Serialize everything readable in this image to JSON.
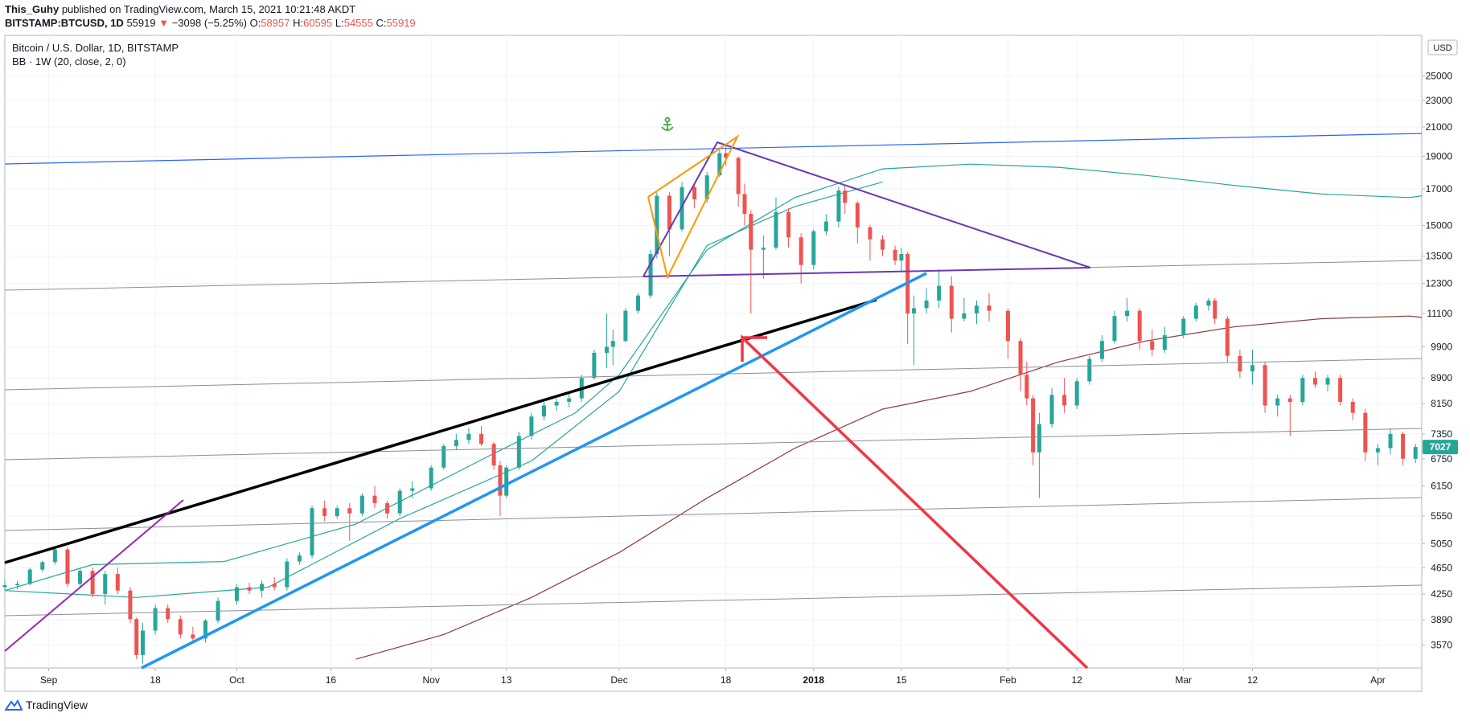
{
  "header": {
    "author": "This_Guhy",
    "published_text": "published on TradingView.com, March 15, 2021 10:21:48 AKDT"
  },
  "quote": {
    "symbol": "BITSTAMP:BTCUSD, 1D",
    "last": "55919",
    "change": "−3098 (−5.25%)",
    "open_label": "O:",
    "open": "58957",
    "high_label": "H:",
    "high": "60595",
    "low_label": "L:",
    "low": "54555",
    "close_label": "C:",
    "close": "55919"
  },
  "legend": {
    "title": "Bitcoin / U.S. Dollar, 1D, BITSTAMP",
    "indicator": "BB · 1W (20, close, 2, 0)"
  },
  "price_scale": {
    "currency": "USD",
    "last_price_tag": "7027",
    "last_price_color": "#26a69a"
  },
  "footer": {
    "brand": "TradingView"
  },
  "colors": {
    "up": "#26a69a",
    "down": "#ef5350",
    "bb_upper": "#26a69a",
    "bb_basis": "#26a69a",
    "bb_lower": "#8d3b38"
  },
  "chart_data": {
    "type": "candlestick",
    "y_scale": "log",
    "ylim": [
      3300,
      27500
    ],
    "y_ticks": [
      25000,
      23000,
      21000,
      19000,
      17000,
      15000,
      13500,
      12300,
      11100,
      9900,
      8900,
      8150,
      7350,
      6750,
      6150,
      5550,
      5050,
      4650,
      4250,
      3890,
      3570
    ],
    "x_ticks": [
      {
        "label": "Sep",
        "date": "2017-09-01"
      },
      {
        "label": "18",
        "date": "2017-09-18"
      },
      {
        "label": "Oct",
        "date": "2017-10-01"
      },
      {
        "label": "16",
        "date": "2017-10-16"
      },
      {
        "label": "Nov",
        "date": "2017-11-01"
      },
      {
        "label": "13",
        "date": "2017-11-13"
      },
      {
        "label": "Dec",
        "date": "2017-12-01"
      },
      {
        "label": "18",
        "date": "2017-12-18"
      },
      {
        "label": "2018",
        "date": "2018-01-01"
      },
      {
        "label": "15",
        "date": "2018-01-15"
      },
      {
        "label": "Feb",
        "date": "2018-02-01"
      },
      {
        "label": "12",
        "date": "2018-02-12"
      },
      {
        "label": "Mar",
        "date": "2018-03-01"
      },
      {
        "label": "12",
        "date": "2018-03-12"
      },
      {
        "label": "Apr",
        "date": "2018-04-01"
      }
    ],
    "x_range": [
      "2017-08-25",
      "2018-04-08"
    ],
    "candles": [
      [
        "2017-08-25",
        4350,
        4450,
        4300,
        4380
      ],
      [
        "2017-08-27",
        4380,
        4450,
        4320,
        4400
      ],
      [
        "2017-08-29",
        4400,
        4650,
        4380,
        4620
      ],
      [
        "2017-08-31",
        4620,
        4760,
        4580,
        4740
      ],
      [
        "2017-09-02",
        4740,
        4980,
        4700,
        4950
      ],
      [
        "2017-09-04",
        4950,
        4990,
        4350,
        4400
      ],
      [
        "2017-09-06",
        4400,
        4650,
        4350,
        4600
      ],
      [
        "2017-09-08",
        4600,
        4650,
        4200,
        4250
      ],
      [
        "2017-09-10",
        4250,
        4600,
        4100,
        4550
      ],
      [
        "2017-09-12",
        4550,
        4650,
        4250,
        4300
      ],
      [
        "2017-09-14",
        4300,
        4350,
        3850,
        3900
      ],
      [
        "2017-09-15",
        3900,
        3920,
        3400,
        3450
      ],
      [
        "2017-09-16",
        3450,
        3850,
        3350,
        3750
      ],
      [
        "2017-09-18",
        3750,
        4100,
        3700,
        4050
      ],
      [
        "2017-09-20",
        4050,
        4100,
        3850,
        3900
      ],
      [
        "2017-09-22",
        3900,
        3950,
        3650,
        3700
      ],
      [
        "2017-09-24",
        3700,
        3800,
        3600,
        3650
      ],
      [
        "2017-09-26",
        3650,
        3900,
        3600,
        3880
      ],
      [
        "2017-09-28",
        3880,
        4200,
        3850,
        4150
      ],
      [
        "2017-10-01",
        4150,
        4400,
        4100,
        4350
      ],
      [
        "2017-10-03",
        4350,
        4420,
        4250,
        4300
      ],
      [
        "2017-10-05",
        4300,
        4450,
        4200,
        4400
      ],
      [
        "2017-10-07",
        4400,
        4500,
        4300,
        4350
      ],
      [
        "2017-10-09",
        4350,
        4800,
        4300,
        4750
      ],
      [
        "2017-10-11",
        4750,
        4900,
        4700,
        4850
      ],
      [
        "2017-10-13",
        4850,
        5750,
        4800,
        5700
      ],
      [
        "2017-10-15",
        5700,
        5850,
        5450,
        5550
      ],
      [
        "2017-10-17",
        5550,
        5750,
        5500,
        5700
      ],
      [
        "2017-10-19",
        5700,
        5800,
        5100,
        5600
      ],
      [
        "2017-10-21",
        5600,
        6000,
        5550,
        5950
      ],
      [
        "2017-10-23",
        5950,
        6150,
        5700,
        5800
      ],
      [
        "2017-10-25",
        5800,
        5850,
        5500,
        5600
      ],
      [
        "2017-10-27",
        5600,
        6100,
        5550,
        6050
      ],
      [
        "2017-10-29",
        6050,
        6250,
        5900,
        6100
      ],
      [
        "2017-11-01",
        6100,
        6600,
        6050,
        6550
      ],
      [
        "2017-11-03",
        6550,
        7100,
        6500,
        7050
      ],
      [
        "2017-11-05",
        7050,
        7350,
        6950,
        7200
      ],
      [
        "2017-11-07",
        7200,
        7500,
        7100,
        7350
      ],
      [
        "2017-11-09",
        7350,
        7550,
        7050,
        7100
      ],
      [
        "2017-11-11",
        7100,
        7150,
        6500,
        6600
      ],
      [
        "2017-11-12",
        6600,
        6700,
        5550,
        5950
      ],
      [
        "2017-11-13",
        5950,
        6600,
        5900,
        6550
      ],
      [
        "2017-11-15",
        6550,
        7400,
        6500,
        7300
      ],
      [
        "2017-11-17",
        7300,
        7900,
        7200,
        7800
      ],
      [
        "2017-11-19",
        7800,
        8200,
        7700,
        8100
      ],
      [
        "2017-11-21",
        8100,
        8300,
        7950,
        8200
      ],
      [
        "2017-11-23",
        8200,
        8500,
        8050,
        8300
      ],
      [
        "2017-11-25",
        8300,
        9000,
        8200,
        8900
      ],
      [
        "2017-11-27",
        8900,
        9800,
        8850,
        9700
      ],
      [
        "2017-11-29",
        9700,
        11100,
        9200,
        9900
      ],
      [
        "2017-11-30",
        9900,
        10500,
        9300,
        10100
      ],
      [
        "2017-12-02",
        10100,
        11300,
        10050,
        11200
      ],
      [
        "2017-12-04",
        11200,
        11900,
        11100,
        11800
      ],
      [
        "2017-12-06",
        11800,
        13800,
        11700,
        13600
      ],
      [
        "2017-12-07",
        13600,
        16800,
        13400,
        16600
      ],
      [
        "2017-12-09",
        16600,
        16800,
        13500,
        14800
      ],
      [
        "2017-12-11",
        14800,
        17400,
        14700,
        17100
      ],
      [
        "2017-12-13",
        17100,
        17300,
        15900,
        16400
      ],
      [
        "2017-12-15",
        16400,
        18000,
        16200,
        17800
      ],
      [
        "2017-12-17",
        17800,
        19600,
        17700,
        19200
      ],
      [
        "2017-12-18",
        19200,
        19700,
        18400,
        18900
      ],
      [
        "2017-12-20",
        18900,
        19000,
        16000,
        16700
      ],
      [
        "2017-12-21",
        16700,
        17300,
        15000,
        15600
      ],
      [
        "2017-12-22",
        15600,
        15800,
        11100,
        13800
      ],
      [
        "2017-12-24",
        13800,
        14500,
        12500,
        13900
      ],
      [
        "2017-12-26",
        13900,
        16500,
        13800,
        15700
      ],
      [
        "2017-12-28",
        15700,
        15900,
        13900,
        14400
      ],
      [
        "2017-12-30",
        14400,
        14600,
        12300,
        13100
      ],
      [
        "2018-01-01",
        13100,
        14800,
        12900,
        14700
      ],
      [
        "2018-01-03",
        14700,
        15600,
        14500,
        15200
      ],
      [
        "2018-01-05",
        15200,
        17100,
        14900,
        16900
      ],
      [
        "2018-01-06",
        16900,
        17200,
        15600,
        16200
      ],
      [
        "2018-01-08",
        16200,
        16300,
        14100,
        14900
      ],
      [
        "2018-01-10",
        14900,
        15000,
        13300,
        14300
      ],
      [
        "2018-01-12",
        14300,
        14500,
        13500,
        13800
      ],
      [
        "2018-01-14",
        13800,
        14000,
        13100,
        13300
      ],
      [
        "2018-01-15",
        13300,
        13900,
        12800,
        13600
      ],
      [
        "2018-01-16",
        13600,
        13700,
        10000,
        11100
      ],
      [
        "2018-01-17",
        11100,
        11800,
        9300,
        11300
      ],
      [
        "2018-01-19",
        11300,
        12100,
        11100,
        11600
      ],
      [
        "2018-01-21",
        11600,
        12900,
        11300,
        12200
      ],
      [
        "2018-01-23",
        12200,
        12600,
        10400,
        10900
      ],
      [
        "2018-01-25",
        10900,
        11700,
        10800,
        11100
      ],
      [
        "2018-01-27",
        11100,
        11600,
        10700,
        11400
      ],
      [
        "2018-01-29",
        11400,
        11900,
        10800,
        11200
      ],
      [
        "2018-02-01",
        11200,
        11300,
        9500,
        10100
      ],
      [
        "2018-02-03",
        10100,
        10200,
        8500,
        9000
      ],
      [
        "2018-02-04",
        9000,
        9400,
        8100,
        8300
      ],
      [
        "2018-02-05",
        8300,
        8400,
        6600,
        6900
      ],
      [
        "2018-02-06",
        6900,
        7900,
        5900,
        7600
      ],
      [
        "2018-02-08",
        7600,
        8600,
        7500,
        8400
      ],
      [
        "2018-02-10",
        8400,
        8900,
        7900,
        8100
      ],
      [
        "2018-02-12",
        8100,
        8900,
        8000,
        8800
      ],
      [
        "2018-02-14",
        8800,
        9600,
        8700,
        9500
      ],
      [
        "2018-02-16",
        9500,
        10300,
        9400,
        10100
      ],
      [
        "2018-02-18",
        10100,
        11200,
        10000,
        11000
      ],
      [
        "2018-02-20",
        11000,
        11700,
        10800,
        11200
      ],
      [
        "2018-02-22",
        11200,
        11300,
        9800,
        10100
      ],
      [
        "2018-02-24",
        10100,
        10500,
        9600,
        9800
      ],
      [
        "2018-02-26",
        9800,
        10600,
        9700,
        10300
      ],
      [
        "2018-03-01",
        10300,
        11000,
        10200,
        10900
      ],
      [
        "2018-03-03",
        10900,
        11500,
        10800,
        11400
      ],
      [
        "2018-03-05",
        11400,
        11700,
        11200,
        11600
      ],
      [
        "2018-03-06",
        11600,
        11700,
        10700,
        10900
      ],
      [
        "2018-03-08",
        10900,
        11000,
        9400,
        9600
      ],
      [
        "2018-03-10",
        9600,
        9800,
        8900,
        9100
      ],
      [
        "2018-03-12",
        9100,
        9800,
        8700,
        9300
      ],
      [
        "2018-03-14",
        9300,
        9400,
        7900,
        8100
      ],
      [
        "2018-03-16",
        8100,
        8400,
        7800,
        8300
      ],
      [
        "2018-03-18",
        8300,
        8400,
        7300,
        8200
      ],
      [
        "2018-03-20",
        8200,
        9000,
        8100,
        8900
      ],
      [
        "2018-03-22",
        8900,
        9100,
        8600,
        8700
      ],
      [
        "2018-03-24",
        8700,
        9000,
        8500,
        8900
      ],
      [
        "2018-03-26",
        8900,
        9000,
        8100,
        8200
      ],
      [
        "2018-03-28",
        8200,
        8300,
        7700,
        7900
      ],
      [
        "2018-03-30",
        7900,
        8000,
        6700,
        6900
      ],
      [
        "2018-04-01",
        6900,
        7100,
        6600,
        7000
      ],
      [
        "2018-04-03",
        7000,
        7500,
        6850,
        7350
      ],
      [
        "2018-04-05",
        7350,
        7400,
        6600,
        6750
      ],
      [
        "2018-04-07",
        6750,
        7100,
        6650,
        7027
      ]
    ],
    "bollinger": {
      "upper": [
        [
          "2017-08-25",
          4300
        ],
        [
          "2017-09-08",
          4700
        ],
        [
          "2017-09-29",
          4750
        ],
        [
          "2017-10-20",
          5400
        ],
        [
          "2017-11-10",
          6800
        ],
        [
          "2017-11-24",
          7900
        ],
        [
          "2017-12-01",
          9000
        ],
        [
          "2017-12-15",
          13800
        ],
        [
          "2017-12-29",
          16500
        ],
        [
          "2018-01-12",
          18200
        ],
        [
          "2018-01-26",
          18500
        ],
        [
          "2018-02-09",
          18300
        ],
        [
          "2018-02-23",
          17800
        ],
        [
          "2018-03-09",
          17200
        ],
        [
          "2018-03-23",
          16700
        ],
        [
          "2018-04-06",
          16500
        ],
        [
          "2018-04-08",
          16600
        ]
      ],
      "basis": [
        [
          "2017-08-25",
          4300
        ],
        [
          "2017-09-15",
          4200
        ],
        [
          "2017-10-06",
          4350
        ],
        [
          "2017-10-27",
          5500
        ],
        [
          "2017-11-17",
          6700
        ],
        [
          "2017-12-01",
          8500
        ],
        [
          "2017-12-15",
          14000
        ],
        [
          "2017-12-29",
          16000
        ],
        [
          "2018-01-12",
          17400
        ]
      ],
      "lower": [
        [
          "2017-10-20",
          3400
        ],
        [
          "2017-11-03",
          3700
        ],
        [
          "2017-11-17",
          4200
        ],
        [
          "2017-12-01",
          4900
        ],
        [
          "2017-12-15",
          5900
        ],
        [
          "2017-12-29",
          7000
        ],
        [
          "2018-01-12",
          8000
        ],
        [
          "2018-01-26",
          8500
        ],
        [
          "2018-02-09",
          9400
        ],
        [
          "2018-02-23",
          10100
        ],
        [
          "2018-03-09",
          10600
        ],
        [
          "2018-03-23",
          10900
        ],
        [
          "2018-04-06",
          11000
        ],
        [
          "2018-04-08",
          10950
        ]
      ]
    }
  }
}
